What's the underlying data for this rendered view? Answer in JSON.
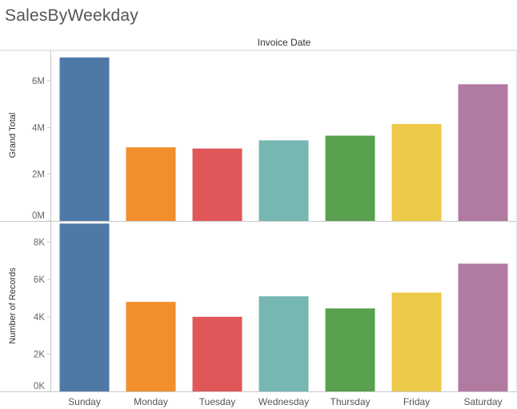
{
  "title": "SalesByWeekday",
  "column_header": "Invoice Date",
  "chart_data": [
    {
      "type": "bar",
      "title": "",
      "xlabel": "Invoice Date",
      "ylabel": "Grand Total",
      "categories": [
        "Sunday",
        "Monday",
        "Tuesday",
        "Wednesday",
        "Thursday",
        "Friday",
        "Saturday"
      ],
      "values": [
        7000000,
        3150000,
        3100000,
        3450000,
        3650000,
        4150000,
        5850000
      ],
      "ylim": [
        0,
        7300000
      ],
      "yticks": [
        0,
        2000000,
        4000000,
        6000000
      ],
      "ytick_labels": [
        "0M",
        "2M",
        "4M",
        "6M"
      ],
      "grid": false
    },
    {
      "type": "bar",
      "title": "",
      "xlabel": "Invoice Date",
      "ylabel": "Number of Records",
      "categories": [
        "Sunday",
        "Monday",
        "Tuesday",
        "Wednesday",
        "Thursday",
        "Friday",
        "Saturday"
      ],
      "values": [
        9000,
        4800,
        4000,
        5100,
        4450,
        5300,
        6850
      ],
      "ylim": [
        0,
        9100
      ],
      "yticks": [
        0,
        2000,
        4000,
        6000,
        8000
      ],
      "ytick_labels": [
        "0K",
        "2K",
        "4K",
        "6K",
        "8K"
      ],
      "grid": false
    }
  ],
  "colors": [
    "#4e79a7",
    "#f28e2b",
    "#e15759",
    "#76b7b2",
    "#59a14f",
    "#edc948",
    "#b07aa1"
  ]
}
